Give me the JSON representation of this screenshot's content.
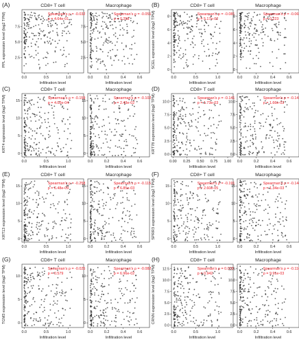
{
  "chart_data": [
    {
      "type": "scatter",
      "panel_label": "(A)",
      "gene_label": "PPL expression level (log2 TPM)",
      "xlabel": "Infiltration level",
      "plots": [
        {
          "title": "CD8+ T cell",
          "rho_text": "Spearman's ρ = -0.032",
          "p_text": "p = 4.64e-01",
          "xticks": [
            "0.0",
            "0.5",
            "1.0"
          ],
          "xtick_values": [
            0,
            0.5,
            1.0
          ],
          "xlim": [
            -0.05,
            1.35
          ],
          "yticks": [
            "2.5",
            "5.0",
            "7.5"
          ],
          "ytick_values": [
            2.5,
            5.0,
            7.5
          ],
          "ylim": [
            0,
            10.2
          ]
        },
        {
          "title": "Macrophage",
          "rho_text": "Spearman's ρ = -0.051",
          "p_text": "p = 0.258",
          "xticks": [
            "0.0",
            "0.2",
            "0.4",
            "0.6"
          ],
          "xtick_values": [
            0,
            0.2,
            0.4,
            0.6
          ],
          "xlim": [
            -0.03,
            0.72
          ],
          "yticks": [
            "2.5",
            "5.0",
            "7.5"
          ],
          "ytick_values": [
            2.5,
            5.0,
            7.5
          ],
          "ylim": [
            0,
            10.2
          ]
        }
      ]
    },
    {
      "type": "scatter",
      "panel_label": "(B)",
      "gene_label": "SCEL expression level (log2 TPM)",
      "xlabel": "Infiltration level",
      "plots": [
        {
          "title": "CD8+ T cell",
          "rho_text": "Spearman's ρ = -0.081",
          "p_text": "p = 5.17e-02",
          "xticks": [
            "0.0",
            "0.5",
            "1.0"
          ],
          "xtick_values": [
            0,
            0.5,
            1.0
          ],
          "xlim": [
            -0.05,
            1.35
          ],
          "yticks": [
            "0",
            "2",
            "4",
            "6",
            "8"
          ],
          "ytick_values": [
            0,
            2,
            4,
            6,
            8
          ],
          "ylim": [
            -0.5,
            9
          ]
        },
        {
          "title": "Macrophage",
          "rho_text": "Spearman's ρ = -0.065",
          "p_text": "p = 0.223",
          "xticks": [
            "0.0",
            "0.2",
            "0.4",
            "0.6"
          ],
          "xtick_values": [
            0,
            0.2,
            0.4,
            0.6
          ],
          "xlim": [
            -0.03,
            0.72
          ],
          "yticks": [
            "0",
            "2",
            "4",
            "6",
            "8"
          ],
          "ytick_values": [
            0,
            2,
            4,
            6,
            8
          ],
          "ylim": [
            -0.5,
            9
          ]
        }
      ]
    },
    {
      "type": "scatter",
      "panel_label": "(C)",
      "gene_label": "KRT4 expression level (log2 TPM)",
      "xlabel": "Infiltration level",
      "plots": [
        {
          "title": "CD8+ T cell",
          "rho_text": "Spearman's ρ = -0.159",
          "p_text": "p = 4.02e-04",
          "xticks": [
            "0.0",
            "0.5",
            "1.0"
          ],
          "xtick_values": [
            0,
            0.5,
            1.0
          ],
          "xlim": [
            -0.05,
            1.35
          ],
          "yticks": [
            "0",
            "5",
            "10",
            "15"
          ],
          "ytick_values": [
            0,
            5,
            10,
            15
          ],
          "ylim": [
            -1,
            17
          ]
        },
        {
          "title": "Macrophage",
          "rho_text": "Spearman's ρ = -0.102",
          "p_text": "p = 2.43e-02",
          "xticks": [
            "0.0",
            "0.2",
            "0.4",
            "0.6"
          ],
          "xtick_values": [
            0,
            0.2,
            0.4,
            0.6
          ],
          "xlim": [
            -0.03,
            0.72
          ],
          "yticks": [
            "0",
            "5",
            "10",
            "15"
          ],
          "ytick_values": [
            0,
            5,
            10,
            15
          ],
          "ylim": [
            -1,
            17
          ]
        }
      ]
    },
    {
      "type": "scatter",
      "panel_label": "(D)",
      "gene_label": "KRT78 expression level (log2 TPM)",
      "xlabel": "Infiltration level",
      "plots": [
        {
          "title": "CD8+ T cell",
          "rho_text": "Spearman's ρ = -0.141",
          "p_text": "p = 1.73e-03",
          "xticks": [
            "0.00",
            "0.25",
            "0.50",
            "0.75",
            "1.00"
          ],
          "xtick_values": [
            0,
            0.25,
            0.5,
            0.75,
            1.0
          ],
          "xlim": [
            -0.03,
            1.1
          ],
          "yticks": [
            "0.0",
            "2.5",
            "5.0",
            "7.5",
            "10.0"
          ],
          "ytick_values": [
            0,
            2.5,
            5,
            7.5,
            10
          ],
          "ylim": [
            -0.5,
            11.5
          ]
        },
        {
          "title": "Macrophage",
          "rho_text": "Spearman's ρ = -0.142",
          "p_text": "p = 1.66e-03",
          "xticks": [
            "0.0",
            "0.2",
            "0.4",
            "0.6"
          ],
          "xtick_values": [
            0,
            0.2,
            0.4,
            0.6
          ],
          "xlim": [
            -0.03,
            0.72
          ],
          "yticks": [
            "0.0",
            "2.5",
            "5.0",
            "7.5",
            "10.0"
          ],
          "ytick_values": [
            0,
            2.5,
            5,
            7.5,
            10
          ],
          "ylim": [
            -0.5,
            11.5
          ]
        }
      ]
    },
    {
      "type": "scatter",
      "panel_label": "(E)",
      "gene_label": "KRT13 expression level (log2 TPM)",
      "xlabel": "Infiltration level",
      "plots": [
        {
          "title": "CD8+ T cell",
          "rho_text": "Spearman's ρ = -0.258",
          "p_text": "p = 6.48e-09",
          "xticks": [
            "0.0",
            "0.5",
            "1.0"
          ],
          "xtick_values": [
            0,
            0.5,
            1.0
          ],
          "xlim": [
            -0.05,
            1.35
          ],
          "yticks": [
            "0",
            "5",
            "10",
            "15"
          ],
          "ytick_values": [
            0,
            5,
            10,
            15
          ],
          "ylim": [
            -1,
            17
          ]
        },
        {
          "title": "Macrophage",
          "rho_text": "Spearman's ρ = -0.115",
          "p_text": "p = 6.85e-03",
          "xticks": [
            "0.0",
            "0.2",
            "0.4",
            "0.6"
          ],
          "xtick_values": [
            0,
            0.2,
            0.4,
            0.6
          ],
          "xlim": [
            -0.03,
            0.72
          ],
          "yticks": [
            "0",
            "5",
            "10",
            "15"
          ],
          "ytick_values": [
            0,
            5,
            10,
            15
          ],
          "ylim": [
            -1,
            17
          ]
        }
      ]
    },
    {
      "type": "scatter",
      "panel_label": "(F)",
      "gene_label": "SPRR3 expression level (log2 TPM)",
      "xlabel": "Infiltration level",
      "plots": [
        {
          "title": "CD8+ T cell",
          "rho_text": "Spearman's ρ = -0.191",
          "p_text": "p = 2.60e-05",
          "xticks": [
            "0.0",
            "0.5",
            "1.0"
          ],
          "xtick_values": [
            0,
            0.5,
            1.0
          ],
          "xlim": [
            -0.05,
            1.35
          ],
          "yticks": [
            "0",
            "5",
            "10",
            "15"
          ],
          "ytick_values": [
            0,
            5,
            10,
            15
          ],
          "ylim": [
            -1,
            17
          ]
        },
        {
          "title": "Macrophage",
          "rho_text": "Spearman's ρ = -0.144",
          "p_text": "p = 1.34e-03",
          "xticks": [
            "0.0",
            "0.2",
            "0.4",
            "0.6"
          ],
          "xtick_values": [
            0,
            0.2,
            0.4,
            0.6
          ],
          "xlim": [
            -0.03,
            0.72
          ],
          "yticks": [
            "0",
            "5",
            "10",
            "15"
          ],
          "ytick_values": [
            0,
            5,
            10,
            15
          ],
          "ylim": [
            -1,
            17
          ]
        }
      ]
    },
    {
      "type": "scatter",
      "panel_label": "(G)",
      "gene_label": "TGM3 expression level (log2 TPM)",
      "xlabel": "Infiltration level",
      "plots": [
        {
          "title": "CD8+ T cell",
          "rho_text": "Spearman's ρ = -0.025",
          "p_text": "p = 0.579",
          "xticks": [
            "0.0",
            "0.5",
            "1.0"
          ],
          "xtick_values": [
            0,
            0.5,
            1.0
          ],
          "xlim": [
            -0.05,
            1.35
          ],
          "yticks": [
            "0",
            "5",
            "10"
          ],
          "ytick_values": [
            0,
            5,
            10
          ],
          "ylim": [
            -1,
            12.5
          ]
        },
        {
          "title": "Macrophage",
          "rho_text": "Spearman's ρ = -0.082",
          "p_text": "p = 6.96e-02",
          "xticks": [
            "0.0",
            "0.2",
            "0.4",
            "0.6"
          ],
          "xtick_values": [
            0,
            0.2,
            0.4,
            0.6
          ],
          "xlim": [
            -0.03,
            0.72
          ],
          "yticks": [
            "0",
            "5",
            "10"
          ],
          "ytick_values": [
            0,
            5,
            10
          ],
          "ylim": [
            -1,
            12.5
          ]
        }
      ]
    },
    {
      "type": "scatter",
      "panel_label": "(H)",
      "gene_label": "CRNN expression level (log2 TPM)",
      "xlabel": "Infiltration level",
      "plots": [
        {
          "title": "CD8+ T cell",
          "rho_text": "Spearman's ρ = 0.003",
          "p_text": "p = 0.942",
          "xticks": [
            "0.0",
            "0.5",
            "1.0"
          ],
          "xtick_values": [
            0,
            0.5,
            1.0
          ],
          "xlim": [
            -0.05,
            1.35
          ],
          "yticks": [
            "0.0",
            "2.5",
            "5.0",
            "7.5",
            "10.0",
            "12.5"
          ],
          "ytick_values": [
            0,
            2.5,
            5,
            7.5,
            10,
            12.5
          ],
          "ylim": [
            -0.5,
            13.5
          ]
        },
        {
          "title": "Macrophage",
          "rho_text": "Spearman's ρ = -0.116",
          "p_text": "p = 9.91e-03",
          "xticks": [
            "0.0",
            "0.2",
            "0.4",
            "0.6"
          ],
          "xtick_values": [
            0,
            0.2,
            0.4,
            0.6
          ],
          "xlim": [
            -0.03,
            0.72
          ],
          "yticks": [
            "0.0",
            "2.5",
            "5.0",
            "7.5",
            "10.0",
            "12.5"
          ],
          "ytick_values": [
            0,
            2.5,
            5,
            7.5,
            10,
            12.5
          ],
          "ylim": [
            -0.5,
            13.5
          ]
        }
      ]
    }
  ],
  "colors": {
    "annotation": "#e8161f",
    "point": "#2a2a2a",
    "axis": "#333333",
    "text": "#222222"
  }
}
